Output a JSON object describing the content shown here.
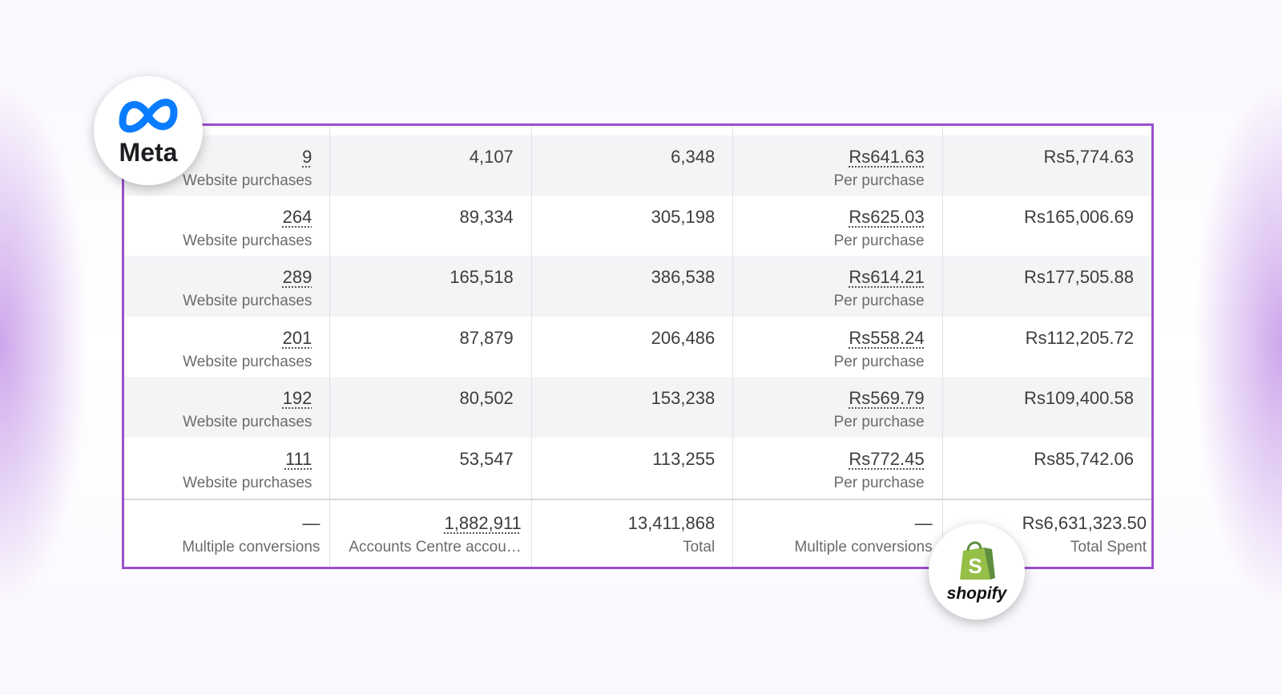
{
  "logos": {
    "meta_label": "Meta",
    "shopify_label": "shopify"
  },
  "colors": {
    "frame_border": "#9b4fd0",
    "meta_blue": "#0a7cff",
    "shopify_green": "#95bf47"
  },
  "rows": [
    {
      "results": "9",
      "results_label": "Website purchases",
      "reach": "4,107",
      "impressions": "6,348",
      "cost": "Rs641.63",
      "cost_label": "Per purchase",
      "spent": "Rs5,774.63"
    },
    {
      "results": "264",
      "results_label": "Website purchases",
      "reach": "89,334",
      "impressions": "305,198",
      "cost": "Rs625.03",
      "cost_label": "Per purchase",
      "spent": "Rs165,006.69"
    },
    {
      "results": "289",
      "results_label": "Website purchases",
      "reach": "165,518",
      "impressions": "386,538",
      "cost": "Rs614.21",
      "cost_label": "Per purchase",
      "spent": "Rs177,505.88"
    },
    {
      "results": "201",
      "results_label": "Website purchases",
      "reach": "87,879",
      "impressions": "206,486",
      "cost": "Rs558.24",
      "cost_label": "Per purchase",
      "spent": "Rs112,205.72"
    },
    {
      "results": "192",
      "results_label": "Website purchases",
      "reach": "80,502",
      "impressions": "153,238",
      "cost": "Rs569.79",
      "cost_label": "Per purchase",
      "spent": "Rs109,400.58"
    },
    {
      "results": "111",
      "results_label": "Website purchases",
      "reach": "53,547",
      "impressions": "113,255",
      "cost": "Rs772.45",
      "cost_label": "Per purchase",
      "spent": "Rs85,742.06"
    }
  ],
  "totals": {
    "results": "—",
    "results_label": "Multiple conversions",
    "reach": "1,882,911",
    "reach_label": "Accounts Centre accou…",
    "impressions": "13,411,868",
    "impressions_label": "Total",
    "cost": "—",
    "cost_label": "Multiple conversions",
    "spent": "Rs6,631,323.50",
    "spent_label": "Total Spent"
  }
}
